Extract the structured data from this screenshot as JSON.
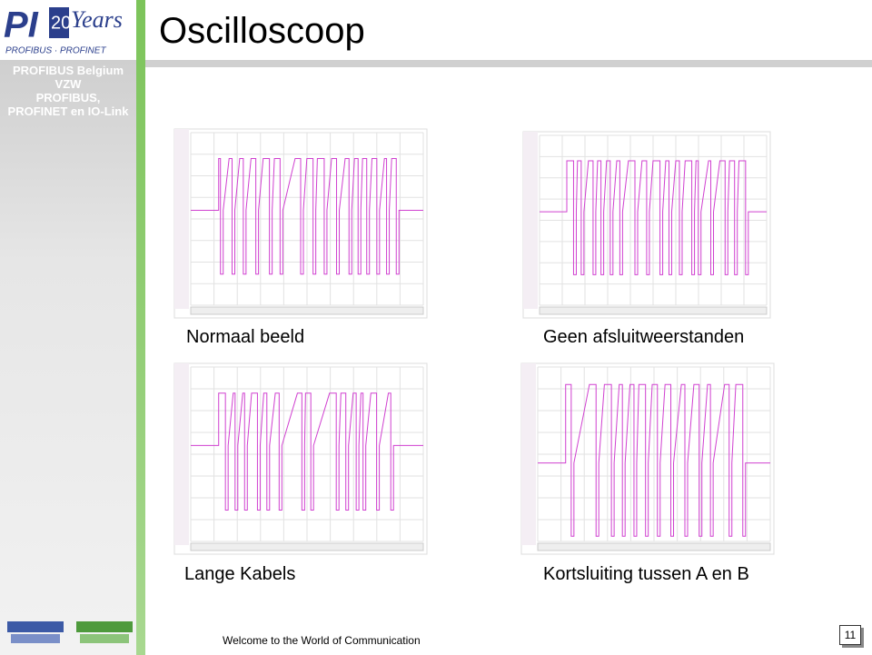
{
  "header": {
    "title": "Oscilloscoop"
  },
  "logo": {
    "main": "PI",
    "years_number": "20",
    "years_text": "Years",
    "tagline": "PROFIBUS · PROFINET"
  },
  "sidebar": {
    "lines": [
      "PROFIBUS Belgium",
      "VZW",
      "PROFIBUS,",
      "PROFINET en IO-Link"
    ]
  },
  "panels": [
    {
      "caption": "Normaal beeld"
    },
    {
      "caption": "Geen afsluitweerstanden"
    },
    {
      "caption": "Lange Kabels"
    },
    {
      "caption": "Kortsluiting tussen A en B"
    }
  ],
  "footer": {
    "text": "Welcome to the World of Communication",
    "page_number": "11"
  }
}
